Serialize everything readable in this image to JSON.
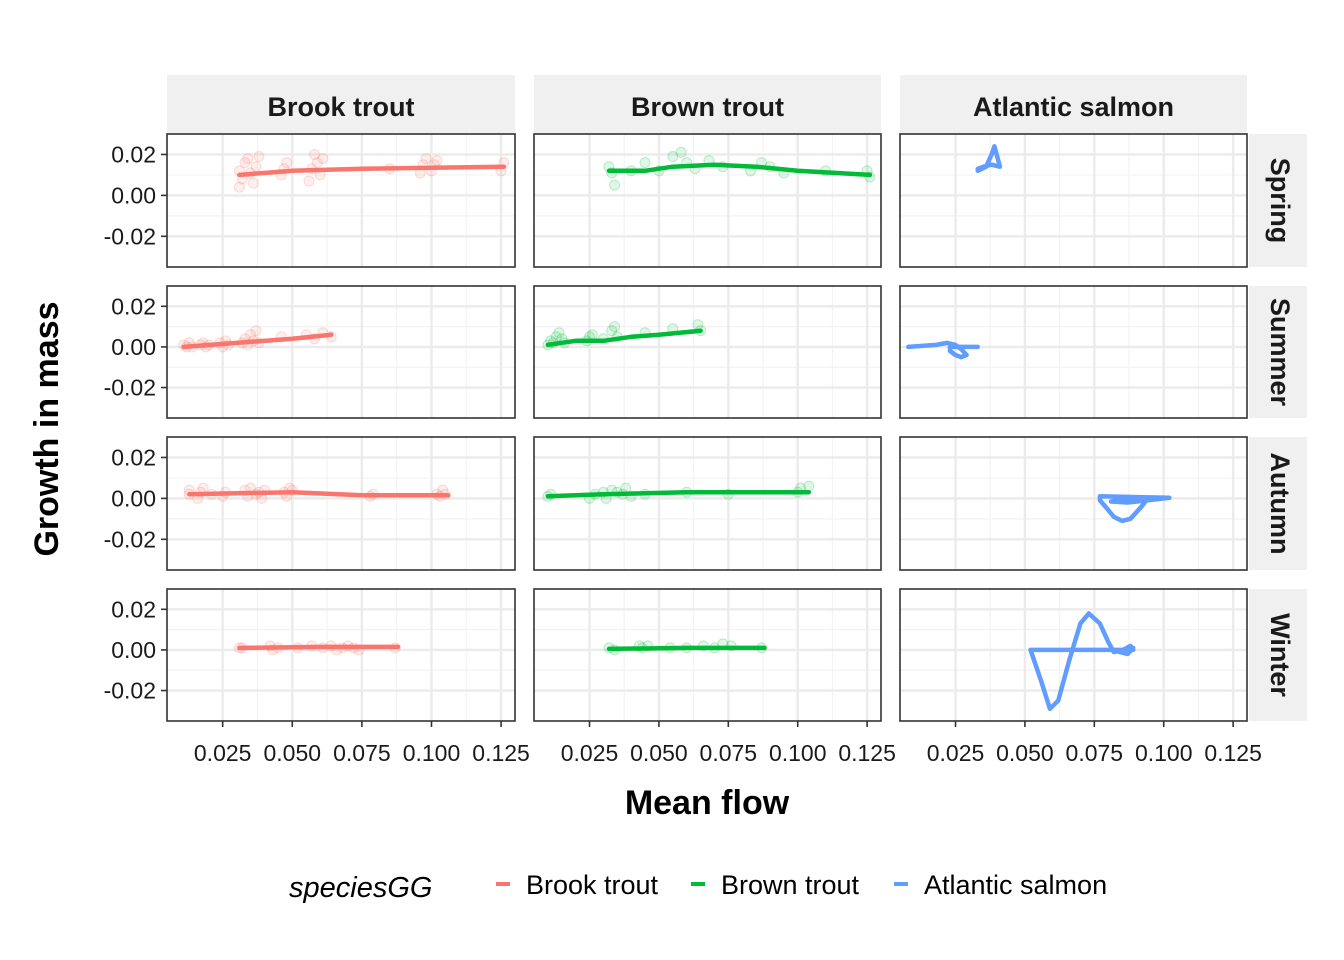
{
  "chart_data": {
    "type": "scatter",
    "xlabel": "Mean flow",
    "ylabel": "Growth in mass",
    "xlim": [
      0.005,
      0.13
    ],
    "ylim": [
      -0.035,
      0.03
    ],
    "x_ticks": [
      0.025,
      0.05,
      0.075,
      0.1,
      0.125
    ],
    "x_tick_labels": [
      "0.025",
      "0.050",
      "0.075",
      "0.100",
      "0.125"
    ],
    "y_ticks": [
      -0.02,
      0.0,
      0.02
    ],
    "y_tick_labels": [
      "-0.02",
      "0.00",
      "0.02"
    ],
    "grid": true,
    "legend": {
      "title": "speciesGG",
      "position": "bottom",
      "entries": [
        "Brook trout",
        "Brown trout",
        "Atlantic salmon"
      ]
    },
    "colors": {
      "Brook trout": "#F8766D",
      "Brown trout": "#00BA38",
      "Atlantic salmon": "#619CFF"
    },
    "species": [
      "Brook trout",
      "Brown trout",
      "Atlantic salmon"
    ],
    "seasons": [
      "Spring",
      "Summer",
      "Autumn",
      "Winter"
    ],
    "panels": {
      "Spring": {
        "Brook trout": {
          "points": [
            [
              0.031,
              0.012
            ],
            [
              0.031,
              0.004
            ],
            [
              0.032,
              0.008
            ],
            [
              0.033,
              0.016
            ],
            [
              0.034,
              0.018
            ],
            [
              0.035,
              0.011
            ],
            [
              0.036,
              0.006
            ],
            [
              0.037,
              0.014
            ],
            [
              0.038,
              0.019
            ],
            [
              0.046,
              0.01
            ],
            [
              0.047,
              0.013
            ],
            [
              0.048,
              0.016
            ],
            [
              0.056,
              0.007
            ],
            [
              0.057,
              0.013
            ],
            [
              0.058,
              0.02
            ],
            [
              0.059,
              0.016
            ],
            [
              0.06,
              0.01
            ],
            [
              0.061,
              0.018
            ],
            [
              0.085,
              0.013
            ],
            [
              0.096,
              0.011
            ],
            [
              0.097,
              0.015
            ],
            [
              0.098,
              0.018
            ],
            [
              0.1,
              0.012
            ],
            [
              0.101,
              0.015
            ],
            [
              0.102,
              0.017
            ],
            [
              0.125,
              0.012
            ],
            [
              0.126,
              0.016
            ]
          ],
          "line": [
            [
              0.031,
              0.01
            ],
            [
              0.05,
              0.012
            ],
            [
              0.075,
              0.013
            ],
            [
              0.1,
              0.0135
            ],
            [
              0.126,
              0.014
            ]
          ]
        },
        "Brown trout": {
          "points": [
            [
              0.032,
              0.014
            ],
            [
              0.033,
              0.011
            ],
            [
              0.034,
              0.005
            ],
            [
              0.04,
              0.012
            ],
            [
              0.045,
              0.016
            ],
            [
              0.05,
              0.012
            ],
            [
              0.055,
              0.019
            ],
            [
              0.058,
              0.021
            ],
            [
              0.06,
              0.016
            ],
            [
              0.063,
              0.013
            ],
            [
              0.068,
              0.017
            ],
            [
              0.073,
              0.014
            ],
            [
              0.083,
              0.012
            ],
            [
              0.087,
              0.016
            ],
            [
              0.09,
              0.014
            ],
            [
              0.095,
              0.011
            ],
            [
              0.11,
              0.012
            ],
            [
              0.125,
              0.012
            ],
            [
              0.126,
              0.009
            ]
          ],
          "line": [
            [
              0.032,
              0.012
            ],
            [
              0.045,
              0.012
            ],
            [
              0.055,
              0.014
            ],
            [
              0.07,
              0.015
            ],
            [
              0.085,
              0.014
            ],
            [
              0.1,
              0.012
            ],
            [
              0.126,
              0.01
            ]
          ]
        },
        "Atlantic salmon": {
          "points": [],
          "line": [
            [
              0.033,
              0.012
            ],
            [
              0.036,
              0.014
            ],
            [
              0.038,
              0.02
            ],
            [
              0.039,
              0.024
            ],
            [
              0.04,
              0.019
            ],
            [
              0.041,
              0.014
            ],
            [
              0.038,
              0.015
            ],
            [
              0.035,
              0.014
            ],
            [
              0.033,
              0.013
            ]
          ]
        }
      },
      "Summer": {
        "Brook trout": {
          "points": [
            [
              0.011,
              0.001
            ],
            [
              0.012,
              0.0
            ],
            [
              0.013,
              0.002
            ],
            [
              0.014,
              0.0
            ],
            [
              0.017,
              0.001
            ],
            [
              0.018,
              0.002
            ],
            [
              0.019,
              0.0
            ],
            [
              0.02,
              0.001
            ],
            [
              0.024,
              0.002
            ],
            [
              0.025,
              0.0
            ],
            [
              0.026,
              0.003
            ],
            [
              0.027,
              0.001
            ],
            [
              0.032,
              0.002
            ],
            [
              0.033,
              0.004
            ],
            [
              0.034,
              0.001
            ],
            [
              0.035,
              0.006
            ],
            [
              0.036,
              0.003
            ],
            [
              0.037,
              0.008
            ],
            [
              0.038,
              0.002
            ],
            [
              0.046,
              0.005
            ],
            [
              0.055,
              0.006
            ],
            [
              0.058,
              0.004
            ],
            [
              0.061,
              0.007
            ],
            [
              0.064,
              0.005
            ]
          ],
          "line": [
            [
              0.011,
              0.0
            ],
            [
              0.03,
              0.002
            ],
            [
              0.05,
              0.004
            ],
            [
              0.064,
              0.006
            ]
          ]
        },
        "Brown trout": {
          "points": [
            [
              0.01,
              0.001
            ],
            [
              0.011,
              0.003
            ],
            [
              0.012,
              0.002
            ],
            [
              0.013,
              0.005
            ],
            [
              0.014,
              0.007
            ],
            [
              0.015,
              0.004
            ],
            [
              0.016,
              0.002
            ],
            [
              0.024,
              0.003
            ],
            [
              0.025,
              0.005
            ],
            [
              0.026,
              0.006
            ],
            [
              0.03,
              0.004
            ],
            [
              0.033,
              0.008
            ],
            [
              0.034,
              0.01
            ],
            [
              0.035,
              0.005
            ],
            [
              0.045,
              0.007
            ],
            [
              0.055,
              0.009
            ],
            [
              0.064,
              0.011
            ],
            [
              0.065,
              0.008
            ]
          ],
          "line": [
            [
              0.01,
              0.001
            ],
            [
              0.02,
              0.003
            ],
            [
              0.03,
              0.003
            ],
            [
              0.04,
              0.005
            ],
            [
              0.05,
              0.006
            ],
            [
              0.065,
              0.008
            ]
          ]
        },
        "Atlantic salmon": {
          "points": [],
          "line": [
            [
              0.008,
              0.0
            ],
            [
              0.013,
              0.0005
            ],
            [
              0.018,
              0.001
            ],
            [
              0.022,
              0.002
            ],
            [
              0.025,
              0.001
            ],
            [
              0.027,
              -0.001
            ],
            [
              0.029,
              -0.004
            ],
            [
              0.027,
              -0.005
            ],
            [
              0.025,
              -0.004
            ],
            [
              0.023,
              -0.002
            ],
            [
              0.023,
              0.0
            ],
            [
              0.026,
              0.0
            ],
            [
              0.03,
              0.0
            ],
            [
              0.033,
              0.0
            ]
          ]
        }
      },
      "Autumn": {
        "Brook trout": {
          "points": [
            [
              0.013,
              0.002
            ],
            [
              0.013,
              0.004
            ],
            [
              0.016,
              0.0
            ],
            [
              0.017,
              0.003
            ],
            [
              0.018,
              0.005
            ],
            [
              0.021,
              0.002
            ],
            [
              0.025,
              0.001
            ],
            [
              0.026,
              0.003
            ],
            [
              0.033,
              0.004
            ],
            [
              0.034,
              0.001
            ],
            [
              0.035,
              0.005
            ],
            [
              0.037,
              0.002
            ],
            [
              0.038,
              0.003
            ],
            [
              0.039,
              0.0
            ],
            [
              0.04,
              0.004
            ],
            [
              0.047,
              0.003
            ],
            [
              0.048,
              0.001
            ],
            [
              0.049,
              0.005
            ],
            [
              0.05,
              0.004
            ],
            [
              0.078,
              0.001
            ],
            [
              0.079,
              0.002
            ],
            [
              0.102,
              0.002
            ],
            [
              0.103,
              0.001
            ],
            [
              0.104,
              0.004
            ],
            [
              0.105,
              0.002
            ]
          ],
          "line": [
            [
              0.013,
              0.002
            ],
            [
              0.03,
              0.0025
            ],
            [
              0.05,
              0.003
            ],
            [
              0.075,
              0.0015
            ],
            [
              0.106,
              0.0015
            ]
          ]
        },
        "Brown trout": {
          "points": [
            [
              0.01,
              0.001
            ],
            [
              0.011,
              0.002
            ],
            [
              0.025,
              0.0
            ],
            [
              0.027,
              0.002
            ],
            [
              0.03,
              0.003
            ],
            [
              0.031,
              0.0
            ],
            [
              0.033,
              0.004
            ],
            [
              0.035,
              0.003
            ],
            [
              0.037,
              0.002
            ],
            [
              0.038,
              0.005
            ],
            [
              0.04,
              0.001
            ],
            [
              0.045,
              0.002
            ],
            [
              0.06,
              0.003
            ],
            [
              0.075,
              0.002
            ],
            [
              0.1,
              0.003
            ],
            [
              0.101,
              0.005
            ],
            [
              0.104,
              0.006
            ]
          ],
          "line": [
            [
              0.01,
              0.001
            ],
            [
              0.03,
              0.002
            ],
            [
              0.06,
              0.003
            ],
            [
              0.08,
              0.003
            ],
            [
              0.104,
              0.003
            ]
          ]
        },
        "Atlantic salmon": {
          "points": [],
          "line": [
            [
              0.077,
              0.001
            ],
            [
              0.085,
              0.0008
            ],
            [
              0.095,
              0.0005
            ],
            [
              0.102,
              0.0003
            ],
            [
              0.094,
              -0.001
            ],
            [
              0.087,
              -0.002
            ],
            [
              0.081,
              -0.0015
            ],
            [
              0.085,
              -0.0007
            ],
            [
              0.094,
              -0.0005
            ],
            [
              0.092,
              -0.004
            ],
            [
              0.088,
              -0.01
            ],
            [
              0.085,
              -0.011
            ],
            [
              0.082,
              -0.009
            ],
            [
              0.079,
              -0.004
            ],
            [
              0.077,
              -0.001
            ],
            [
              0.077,
              0.001
            ]
          ]
        }
      },
      "Winter": {
        "Brook trout": {
          "points": [
            [
              0.031,
              0.001
            ],
            [
              0.032,
              0.001
            ],
            [
              0.042,
              0.002
            ],
            [
              0.043,
              0.0
            ],
            [
              0.045,
              0.001
            ],
            [
              0.052,
              0.001
            ],
            [
              0.057,
              0.002
            ],
            [
              0.061,
              0.001
            ],
            [
              0.064,
              0.002
            ],
            [
              0.066,
              0.0
            ],
            [
              0.068,
              0.001
            ],
            [
              0.07,
              0.002
            ],
            [
              0.072,
              0.001
            ],
            [
              0.074,
              0.0
            ],
            [
              0.087,
              0.001
            ]
          ],
          "line": [
            [
              0.031,
              0.001
            ],
            [
              0.06,
              0.0015
            ],
            [
              0.088,
              0.0015
            ]
          ]
        },
        "Brown trout": {
          "points": [
            [
              0.032,
              0.001
            ],
            [
              0.034,
              0.0
            ],
            [
              0.043,
              0.002
            ],
            [
              0.044,
              0.001
            ],
            [
              0.046,
              0.002
            ],
            [
              0.054,
              0.001
            ],
            [
              0.06,
              0.001
            ],
            [
              0.066,
              0.002
            ],
            [
              0.07,
              0.001
            ],
            [
              0.073,
              0.003
            ],
            [
              0.076,
              0.002
            ],
            [
              0.087,
              0.001
            ]
          ],
          "line": [
            [
              0.032,
              0.0005
            ],
            [
              0.06,
              0.001
            ],
            [
              0.088,
              0.001
            ]
          ]
        },
        "Atlantic salmon": {
          "points": [],
          "line": [
            [
              0.052,
              0.0
            ],
            [
              0.056,
              -0.016
            ],
            [
              0.059,
              -0.029
            ],
            [
              0.062,
              -0.025
            ],
            [
              0.066,
              -0.005
            ],
            [
              0.07,
              0.013
            ],
            [
              0.073,
              0.018
            ],
            [
              0.077,
              0.013
            ],
            [
              0.08,
              0.004
            ],
            [
              0.082,
              -0.001
            ],
            [
              0.086,
              0.0
            ],
            [
              0.089,
              0.001
            ],
            [
              0.087,
              -0.002
            ],
            [
              0.084,
              -0.001
            ],
            [
              0.088,
              0.002
            ],
            [
              0.089,
              0.0
            ],
            [
              0.07,
              0.0
            ],
            [
              0.052,
              0.0
            ]
          ]
        }
      }
    }
  }
}
